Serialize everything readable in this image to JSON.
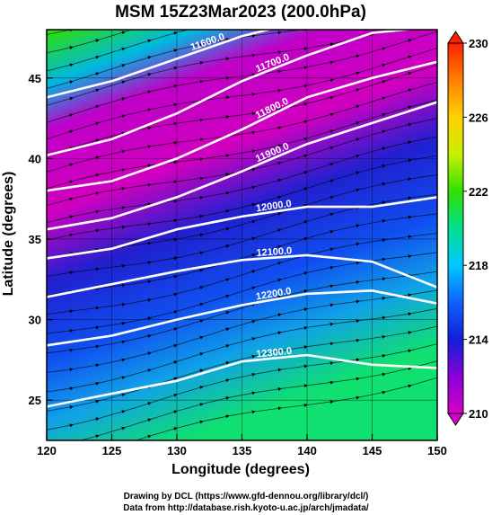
{
  "chart_data": {
    "type": "heatmap",
    "title": "MSM 15Z23Mar2023 (200.0hPa)",
    "xlabel": "Longitude (degrees)",
    "ylabel": "Latitude  (degrees)",
    "xlim": [
      120,
      150
    ],
    "ylim": [
      22.5,
      48
    ],
    "x_ticks": [
      120,
      125,
      130,
      135,
      140,
      145,
      150
    ],
    "y_ticks": [
      25,
      30,
      35,
      40,
      45
    ],
    "colorbar": {
      "min": 210,
      "max": 230,
      "ticks": [
        210,
        214,
        218,
        222,
        226,
        230
      ],
      "colors": [
        "#d700c8",
        "#8a00d8",
        "#1020d8",
        "#1060ff",
        "#00c8ff",
        "#00e090",
        "#30e000",
        "#c8f000",
        "#ffd000",
        "#ff8000",
        "#ff2000"
      ]
    },
    "contours": [
      {
        "label": "11600.0",
        "points": [
          [
            120,
            43.8
          ],
          [
            125,
            44.8
          ],
          [
            130,
            46.2
          ],
          [
            135,
            47.6
          ],
          [
            140,
            48.6
          ]
        ]
      },
      {
        "label": "11700.0",
        "points": [
          [
            120,
            40.2
          ],
          [
            125,
            41.2
          ],
          [
            130,
            42.8
          ],
          [
            135,
            44.8
          ],
          [
            140,
            46.4
          ],
          [
            145,
            47.8
          ],
          [
            150,
            48.2
          ]
        ]
      },
      {
        "label": "11800.0",
        "points": [
          [
            120,
            38.0
          ],
          [
            125,
            38.6
          ],
          [
            130,
            40.0
          ],
          [
            135,
            41.8
          ],
          [
            140,
            43.8
          ],
          [
            145,
            45.0
          ],
          [
            150,
            46.0
          ]
        ]
      },
      {
        "label": "11900.0",
        "points": [
          [
            120,
            35.6
          ],
          [
            125,
            36.3
          ],
          [
            130,
            37.6
          ],
          [
            135,
            39.2
          ],
          [
            140,
            40.9
          ],
          [
            145,
            42.2
          ],
          [
            150,
            43.5
          ]
        ]
      },
      {
        "label": "12000.0",
        "points": [
          [
            120,
            33.8
          ],
          [
            125,
            34.4
          ],
          [
            130,
            35.6
          ],
          [
            135,
            36.4
          ],
          [
            140,
            37.0
          ],
          [
            145,
            37.0
          ],
          [
            150,
            37.6
          ]
        ]
      },
      {
        "label": "12100.0",
        "points": [
          [
            120,
            31.4
          ],
          [
            125,
            32.2
          ],
          [
            130,
            33.0
          ],
          [
            135,
            33.7
          ],
          [
            140,
            34.0
          ],
          [
            145,
            33.6
          ],
          [
            150,
            32.0
          ]
        ]
      },
      {
        "label": "12200.0",
        "points": [
          [
            120,
            28.4
          ],
          [
            125,
            29.0
          ],
          [
            130,
            30.0
          ],
          [
            135,
            30.9
          ],
          [
            140,
            31.6
          ],
          [
            145,
            31.8
          ],
          [
            150,
            31.0
          ]
        ]
      },
      {
        "label": "12300.0",
        "points": [
          [
            120,
            24.6
          ],
          [
            125,
            25.4
          ],
          [
            130,
            26.2
          ],
          [
            135,
            27.4
          ],
          [
            140,
            27.8
          ],
          [
            145,
            27.2
          ],
          [
            150,
            27.0
          ]
        ]
      }
    ]
  },
  "footer": {
    "line1": "Drawing by DCL (https://www.gfd-dennou.org/library/dcl/)",
    "line2": "Data from http://database.rish.kyoto-u.ac.jp/arch/jmadata/"
  }
}
